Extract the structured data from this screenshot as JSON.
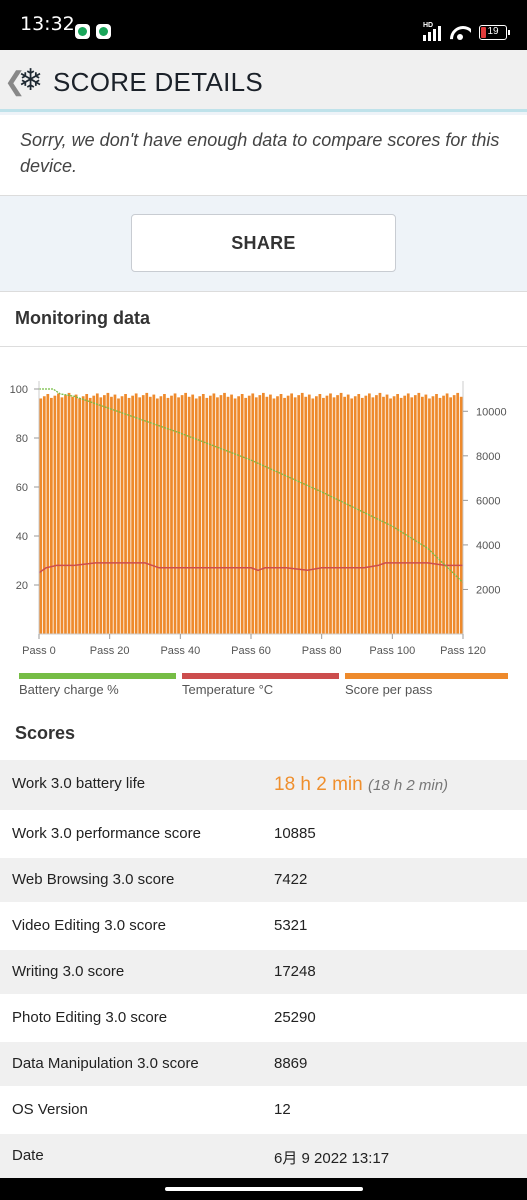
{
  "status_bar": {
    "time": "13:32",
    "network": "HD",
    "battery": "19"
  },
  "header": {
    "title": "SCORE DETAILS",
    "back_icon": "chevron-left-icon",
    "logo_icon": "snowflake-icon"
  },
  "notice": {
    "text": "Sorry, we don't have enough data to compare scores for this device."
  },
  "share": {
    "label": "SHARE"
  },
  "monitoring": {
    "title": "Monitoring data"
  },
  "chart_data": {
    "type": "bar",
    "x": {
      "ticks": [
        "Pass 0",
        "Pass 20",
        "Pass 40",
        "Pass 60",
        "Pass 80",
        "Pass 100",
        "Pass 120"
      ],
      "range": [
        0,
        120
      ],
      "tick_values": [
        0,
        20,
        40,
        60,
        80,
        100,
        120
      ]
    },
    "y_left": {
      "ticks": [
        "20",
        "40",
        "60",
        "80",
        "100"
      ],
      "tick_values": [
        20,
        40,
        60,
        80,
        100
      ],
      "range": [
        0,
        100
      ]
    },
    "y_right": {
      "ticks": [
        "2000",
        "4000",
        "6000",
        "8000",
        "10000"
      ],
      "tick_values": [
        2000,
        4000,
        6000,
        8000,
        10000
      ],
      "range": [
        0,
        11000
      ]
    },
    "grid": false,
    "legend_position": "bottom",
    "series": [
      {
        "name": "Battery charge %",
        "type": "line",
        "axis": "left",
        "color": "#76bd45",
        "points": [
          [
            0,
            100
          ],
          [
            4,
            100
          ],
          [
            6,
            98
          ],
          [
            10,
            97
          ],
          [
            20,
            92
          ],
          [
            40,
            82
          ],
          [
            60,
            71
          ],
          [
            80,
            58
          ],
          [
            100,
            44
          ],
          [
            110,
            35
          ],
          [
            120,
            21
          ]
        ]
      },
      {
        "name": "Temperature °C",
        "type": "line",
        "axis": "left",
        "color": "#cc4d4d",
        "points": [
          [
            0,
            25
          ],
          [
            2,
            27
          ],
          [
            5,
            28
          ],
          [
            10,
            28
          ],
          [
            16,
            29
          ],
          [
            30,
            29
          ],
          [
            34,
            27
          ],
          [
            60,
            27
          ],
          [
            62,
            26
          ],
          [
            64,
            27
          ],
          [
            70,
            27
          ],
          [
            76,
            26
          ],
          [
            80,
            27
          ],
          [
            92,
            27
          ],
          [
            96,
            28
          ],
          [
            98,
            29
          ],
          [
            110,
            29
          ],
          [
            115,
            28
          ],
          [
            120,
            28
          ]
        ]
      },
      {
        "name": "Score per pass",
        "type": "bar",
        "axis": "right",
        "color": "#ee8a2c",
        "base_value": 10700,
        "count": 120
      }
    ]
  },
  "scores": {
    "title": "Scores",
    "rows": [
      {
        "label": "Work 3.0 battery life",
        "value": "18 h 2 min",
        "sub": "(18 h 2 min)"
      },
      {
        "label": "Work 3.0 performance score",
        "value": "10885"
      },
      {
        "label": "Web Browsing 3.0 score",
        "value": "7422"
      },
      {
        "label": "Video Editing 3.0 score",
        "value": "5321"
      },
      {
        "label": "Writing 3.0 score",
        "value": "17248"
      },
      {
        "label": "Photo Editing 3.0 score",
        "value": "25290"
      },
      {
        "label": "Data Manipulation 3.0 score",
        "value": "8869"
      },
      {
        "label": "OS Version",
        "value": "12"
      },
      {
        "label": "Date",
        "value": "6月 9 2022 13:17"
      }
    ]
  }
}
